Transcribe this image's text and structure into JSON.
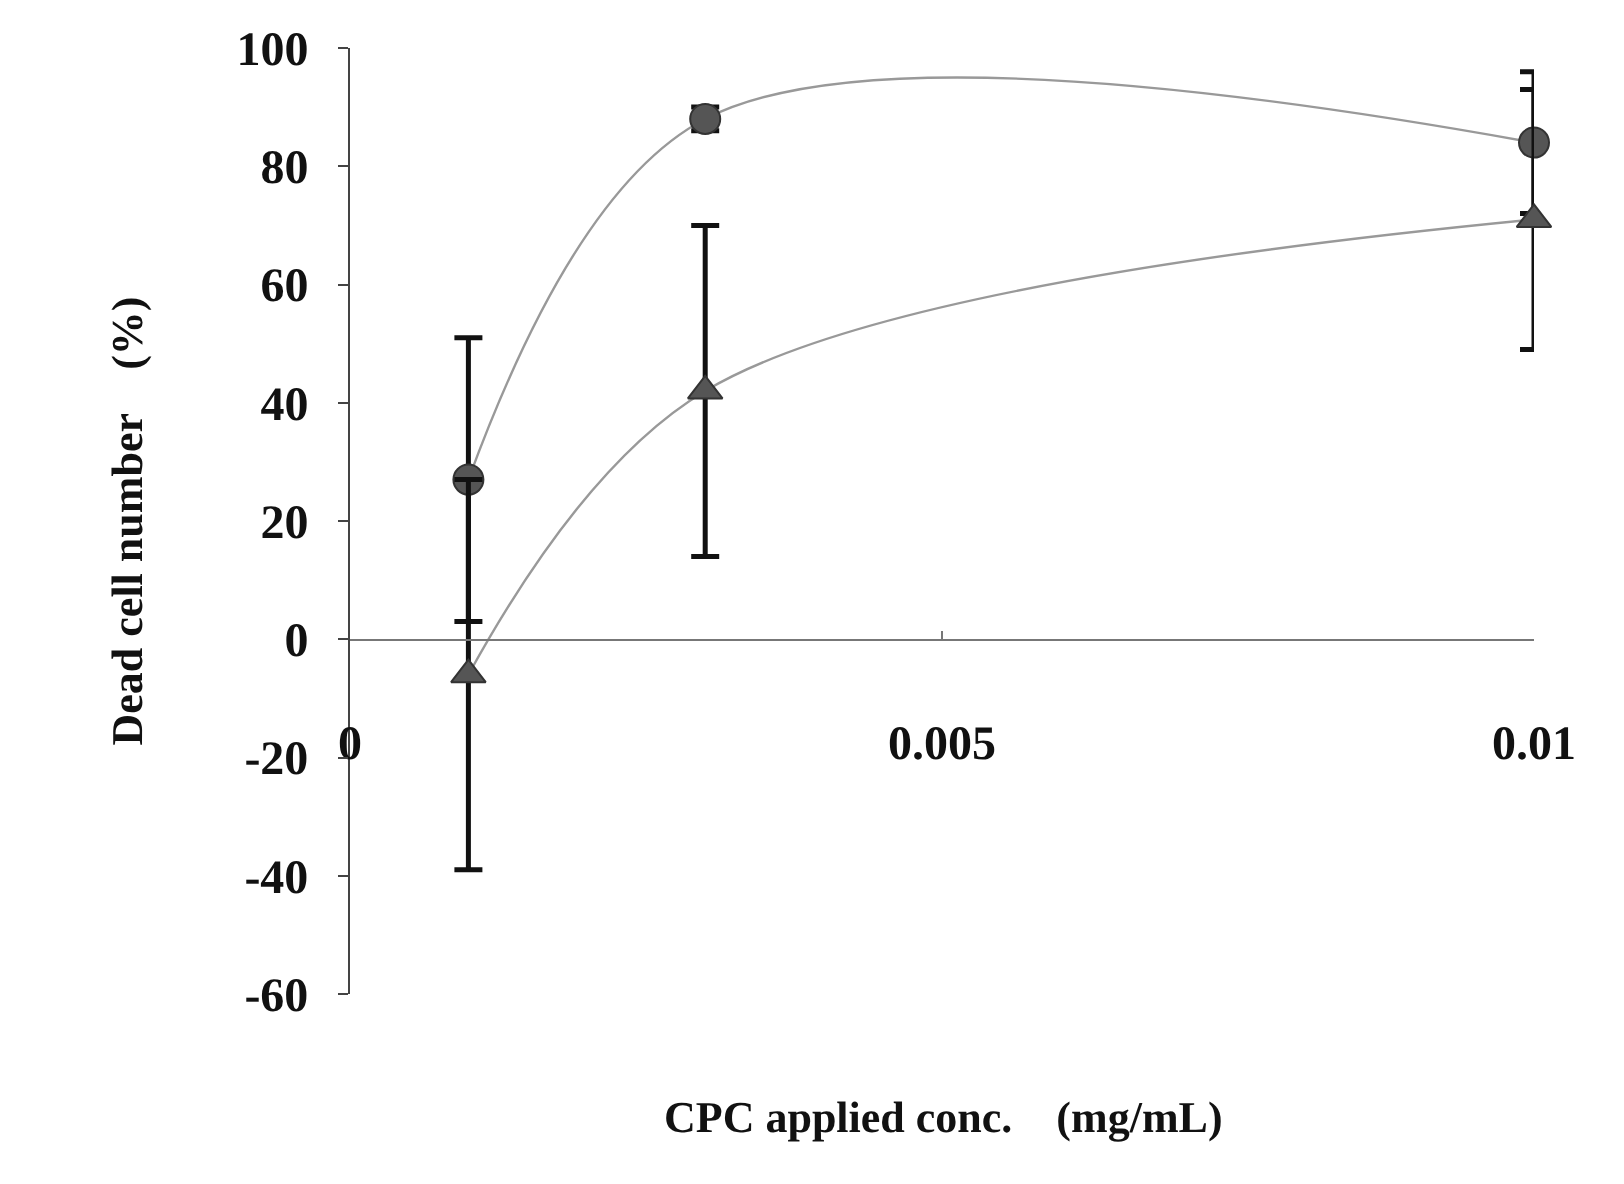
{
  "chart_data": {
    "type": "line",
    "xlabel": "CPC applied conc.　(mg/mL)",
    "ylabel": "Dead cell number　(%)",
    "xlim": [
      0,
      0.01
    ],
    "xticks": [
      0,
      0.005,
      0.01
    ],
    "ylim": [
      -60,
      100
    ],
    "yticks": [
      -60,
      -40,
      -20,
      0,
      20,
      40,
      60,
      80,
      100
    ],
    "x": [
      0.001,
      0.003,
      0.01
    ],
    "line_style": "solid",
    "series": [
      {
        "color": "#555555",
        "marker": "circle",
        "values": [
          27,
          88,
          84
        ],
        "errors": [
          24,
          2,
          12
        ]
      },
      {
        "color": "#555555",
        "marker": "triangle",
        "values": [
          -6,
          42,
          71
        ],
        "errors": [
          33,
          28,
          22
        ]
      }
    ]
  }
}
